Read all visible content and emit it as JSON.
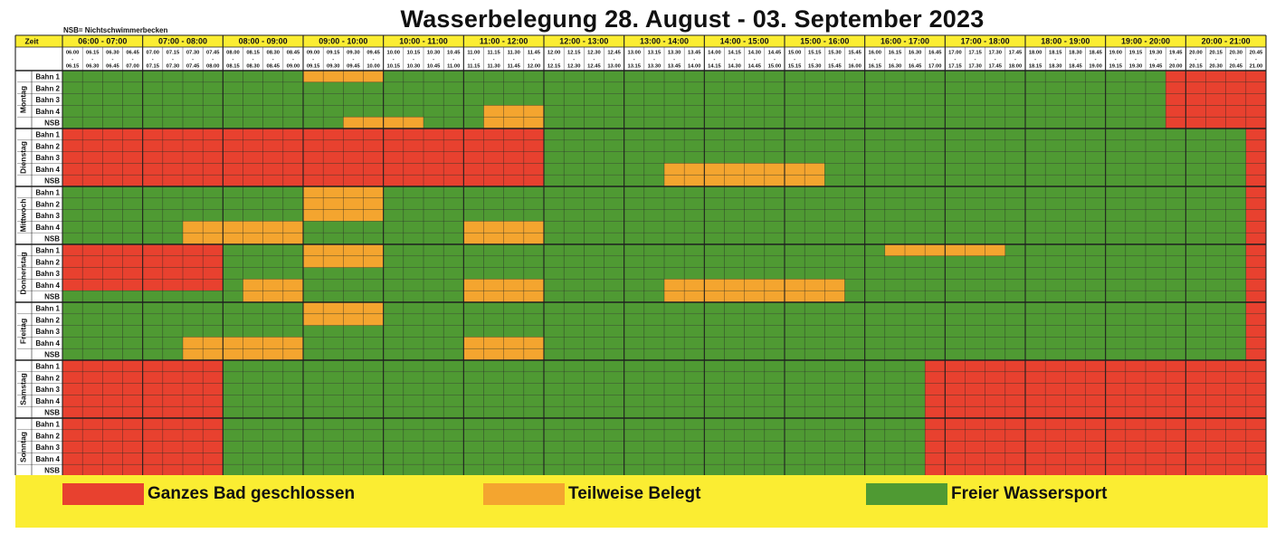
{
  "title": "Wasserbelegung 28. August - 03. September 2023",
  "note": "NSB= Nichtschwimmerbecken",
  "zeit_label": "Zeit",
  "hours": [
    "06:00 - 07:00",
    "07:00 - 08:00",
    "08:00 - 09:00",
    "09:00 - 10:00",
    "10:00 - 11:00",
    "11:00 - 12:00",
    "12:00 - 13:00",
    "13:00 - 14:00",
    "14:00 - 15:00",
    "15:00 - 16:00",
    "16:00 - 17:00",
    "17:00 - 18:00",
    "18:00 - 19:00",
    "19:00 - 20:00",
    "20:00 - 21:00"
  ],
  "slot_starts": [
    "06.00",
    "06.15",
    "06.30",
    "06.45",
    "07.00",
    "07.15",
    "07.30",
    "07.45",
    "08.00",
    "08.15",
    "08.30",
    "08.45",
    "09.00",
    "09.15",
    "09.30",
    "09.45",
    "10.00",
    "10.15",
    "10.30",
    "10.45",
    "11.00",
    "11.15",
    "11.30",
    "11.45",
    "12.00",
    "12.15",
    "12.30",
    "12.45",
    "13.00",
    "13.15",
    "13.30",
    "13.45",
    "14.00",
    "14.15",
    "14.30",
    "14.45",
    "15.00",
    "15.15",
    "15.30",
    "15.45",
    "16.00",
    "16.15",
    "16.30",
    "16.45",
    "17.00",
    "17.15",
    "17.30",
    "17.45",
    "18.00",
    "18.15",
    "18.30",
    "18.45",
    "19.00",
    "19.15",
    "19.30",
    "19.45",
    "20.00",
    "20.15",
    "20.30",
    "20.45"
  ],
  "slot_ends": [
    "06.15",
    "06.30",
    "06.45",
    "07.00",
    "07.15",
    "07.30",
    "07.45",
    "08.00",
    "08.15",
    "08.30",
    "08.45",
    "09.00",
    "09.15",
    "09.30",
    "09.45",
    "10.00",
    "10.15",
    "10.30",
    "10.45",
    "11.00",
    "11.15",
    "11.30",
    "11.45",
    "12.00",
    "12.15",
    "12.30",
    "12.45",
    "13.00",
    "13.15",
    "13.30",
    "13.45",
    "14.00",
    "14.15",
    "14.30",
    "14.45",
    "15.00",
    "15.15",
    "15.30",
    "15.45",
    "16.00",
    "16.15",
    "16.30",
    "16.45",
    "17.00",
    "17.15",
    "17.30",
    "17.45",
    "18.00",
    "18.15",
    "18.30",
    "18.45",
    "19.00",
    "19.15",
    "19.30",
    "19.45",
    "20.00",
    "20.15",
    "20.30",
    "20.45",
    "21.00"
  ],
  "slot_dash": "-",
  "lanes": [
    "Bahn 1",
    "Bahn 2",
    "Bahn 3",
    "Bahn 4",
    "NSB"
  ],
  "colors": {
    "closed": "#e8412f",
    "partial": "#f4a52f",
    "free": "#4f9a33",
    "header": "#fbed32",
    "grid": "#1f1f1f"
  },
  "legend": [
    {
      "status": "closed",
      "label": "Ganzes Bad geschlossen"
    },
    {
      "status": "partial",
      "label": "Teilweise Belegt"
    },
    {
      "status": "free",
      "label": "Freier Wassersport"
    }
  ],
  "days": [
    {
      "name": "Montag",
      "lanes": [
        [
          {
            "from": "09.00",
            "to": "10.00",
            "status": "partial"
          },
          {
            "from": "19.45",
            "to": "21.00",
            "status": "closed"
          }
        ],
        [
          {
            "from": "19.45",
            "to": "21.00",
            "status": "closed"
          }
        ],
        [
          {
            "from": "19.45",
            "to": "21.00",
            "status": "closed"
          }
        ],
        [
          {
            "from": "11.15",
            "to": "12.00",
            "status": "partial"
          },
          {
            "from": "19.45",
            "to": "21.00",
            "status": "closed"
          }
        ],
        [
          {
            "from": "09.30",
            "to": "10.30",
            "status": "partial"
          },
          {
            "from": "11.15",
            "to": "12.00",
            "status": "partial"
          },
          {
            "from": "19.45",
            "to": "21.00",
            "status": "closed"
          }
        ]
      ]
    },
    {
      "name": "Dienstag",
      "lanes": [
        [
          {
            "from": "06.00",
            "to": "12.00",
            "status": "closed"
          },
          {
            "from": "20.45",
            "to": "21.00",
            "status": "closed"
          }
        ],
        [
          {
            "from": "06.00",
            "to": "12.00",
            "status": "closed"
          },
          {
            "from": "20.45",
            "to": "21.00",
            "status": "closed"
          }
        ],
        [
          {
            "from": "06.00",
            "to": "12.00",
            "status": "closed"
          },
          {
            "from": "20.45",
            "to": "21.00",
            "status": "closed"
          }
        ],
        [
          {
            "from": "06.00",
            "to": "12.00",
            "status": "closed"
          },
          {
            "from": "13.30",
            "to": "15.30",
            "status": "partial"
          },
          {
            "from": "20.45",
            "to": "21.00",
            "status": "closed"
          }
        ],
        [
          {
            "from": "06.00",
            "to": "12.00",
            "status": "closed"
          },
          {
            "from": "13.30",
            "to": "15.30",
            "status": "partial"
          },
          {
            "from": "20.45",
            "to": "21.00",
            "status": "closed"
          }
        ]
      ]
    },
    {
      "name": "Mittwoch",
      "lanes": [
        [
          {
            "from": "09.00",
            "to": "10.00",
            "status": "partial"
          },
          {
            "from": "20.45",
            "to": "21.00",
            "status": "closed"
          }
        ],
        [
          {
            "from": "09.00",
            "to": "10.00",
            "status": "partial"
          },
          {
            "from": "20.45",
            "to": "21.00",
            "status": "closed"
          }
        ],
        [
          {
            "from": "09.00",
            "to": "10.00",
            "status": "partial"
          },
          {
            "from": "20.45",
            "to": "21.00",
            "status": "closed"
          }
        ],
        [
          {
            "from": "07.30",
            "to": "09.00",
            "status": "partial"
          },
          {
            "from": "11.00",
            "to": "12.00",
            "status": "partial"
          },
          {
            "from": "20.45",
            "to": "21.00",
            "status": "closed"
          }
        ],
        [
          {
            "from": "07.30",
            "to": "09.00",
            "status": "partial"
          },
          {
            "from": "11.00",
            "to": "12.00",
            "status": "partial"
          },
          {
            "from": "20.45",
            "to": "21.00",
            "status": "closed"
          }
        ]
      ]
    },
    {
      "name": "Donnerstag",
      "lanes": [
        [
          {
            "from": "06.00",
            "to": "08.00",
            "status": "closed"
          },
          {
            "from": "09.00",
            "to": "10.00",
            "status": "partial"
          },
          {
            "from": "16.15",
            "to": "17.45",
            "status": "partial"
          },
          {
            "from": "20.45",
            "to": "21.00",
            "status": "closed"
          }
        ],
        [
          {
            "from": "06.00",
            "to": "08.00",
            "status": "closed"
          },
          {
            "from": "09.00",
            "to": "10.00",
            "status": "partial"
          },
          {
            "from": "20.45",
            "to": "21.00",
            "status": "closed"
          }
        ],
        [
          {
            "from": "06.00",
            "to": "08.00",
            "status": "closed"
          },
          {
            "from": "20.45",
            "to": "21.00",
            "status": "closed"
          }
        ],
        [
          {
            "from": "06.00",
            "to": "08.00",
            "status": "closed"
          },
          {
            "from": "08.15",
            "to": "09.00",
            "status": "partial"
          },
          {
            "from": "11.00",
            "to": "12.00",
            "status": "partial"
          },
          {
            "from": "13.30",
            "to": "15.45",
            "status": "partial"
          },
          {
            "from": "20.45",
            "to": "21.00",
            "status": "closed"
          }
        ],
        [
          {
            "from": "08.15",
            "to": "09.00",
            "status": "partial"
          },
          {
            "from": "11.00",
            "to": "12.00",
            "status": "partial"
          },
          {
            "from": "13.30",
            "to": "15.45",
            "status": "partial"
          },
          {
            "from": "20.45",
            "to": "21.00",
            "status": "closed"
          }
        ]
      ]
    },
    {
      "name": "Freitag",
      "lanes": [
        [
          {
            "from": "09.00",
            "to": "10.00",
            "status": "partial"
          },
          {
            "from": "20.45",
            "to": "21.00",
            "status": "closed"
          }
        ],
        [
          {
            "from": "09.00",
            "to": "10.00",
            "status": "partial"
          },
          {
            "from": "20.45",
            "to": "21.00",
            "status": "closed"
          }
        ],
        [
          {
            "from": "20.45",
            "to": "21.00",
            "status": "closed"
          }
        ],
        [
          {
            "from": "07.30",
            "to": "09.00",
            "status": "partial"
          },
          {
            "from": "11.00",
            "to": "12.00",
            "status": "partial"
          },
          {
            "from": "20.45",
            "to": "21.00",
            "status": "closed"
          }
        ],
        [
          {
            "from": "07.30",
            "to": "09.00",
            "status": "partial"
          },
          {
            "from": "11.00",
            "to": "12.00",
            "status": "partial"
          },
          {
            "from": "20.45",
            "to": "21.00",
            "status": "closed"
          }
        ]
      ]
    },
    {
      "name": "Samstag",
      "lanes": [
        [
          {
            "from": "06.00",
            "to": "08.00",
            "status": "closed"
          },
          {
            "from": "16.45",
            "to": "21.00",
            "status": "closed"
          }
        ],
        [
          {
            "from": "06.00",
            "to": "08.00",
            "status": "closed"
          },
          {
            "from": "16.45",
            "to": "21.00",
            "status": "closed"
          }
        ],
        [
          {
            "from": "06.00",
            "to": "08.00",
            "status": "closed"
          },
          {
            "from": "16.45",
            "to": "21.00",
            "status": "closed"
          }
        ],
        [
          {
            "from": "06.00",
            "to": "08.00",
            "status": "closed"
          },
          {
            "from": "16.45",
            "to": "21.00",
            "status": "closed"
          }
        ],
        [
          {
            "from": "06.00",
            "to": "08.00",
            "status": "closed"
          },
          {
            "from": "16.45",
            "to": "21.00",
            "status": "closed"
          }
        ]
      ]
    },
    {
      "name": "Sonntag",
      "lanes": [
        [
          {
            "from": "06.00",
            "to": "08.00",
            "status": "closed"
          },
          {
            "from": "16.45",
            "to": "21.00",
            "status": "closed"
          }
        ],
        [
          {
            "from": "06.00",
            "to": "08.00",
            "status": "closed"
          },
          {
            "from": "16.45",
            "to": "21.00",
            "status": "closed"
          }
        ],
        [
          {
            "from": "06.00",
            "to": "08.00",
            "status": "closed"
          },
          {
            "from": "16.45",
            "to": "21.00",
            "status": "closed"
          }
        ],
        [
          {
            "from": "06.00",
            "to": "08.00",
            "status": "closed"
          },
          {
            "from": "16.45",
            "to": "21.00",
            "status": "closed"
          }
        ],
        [
          {
            "from": "06.00",
            "to": "08.00",
            "status": "closed"
          },
          {
            "from": "16.45",
            "to": "21.00",
            "status": "closed"
          }
        ]
      ]
    }
  ]
}
